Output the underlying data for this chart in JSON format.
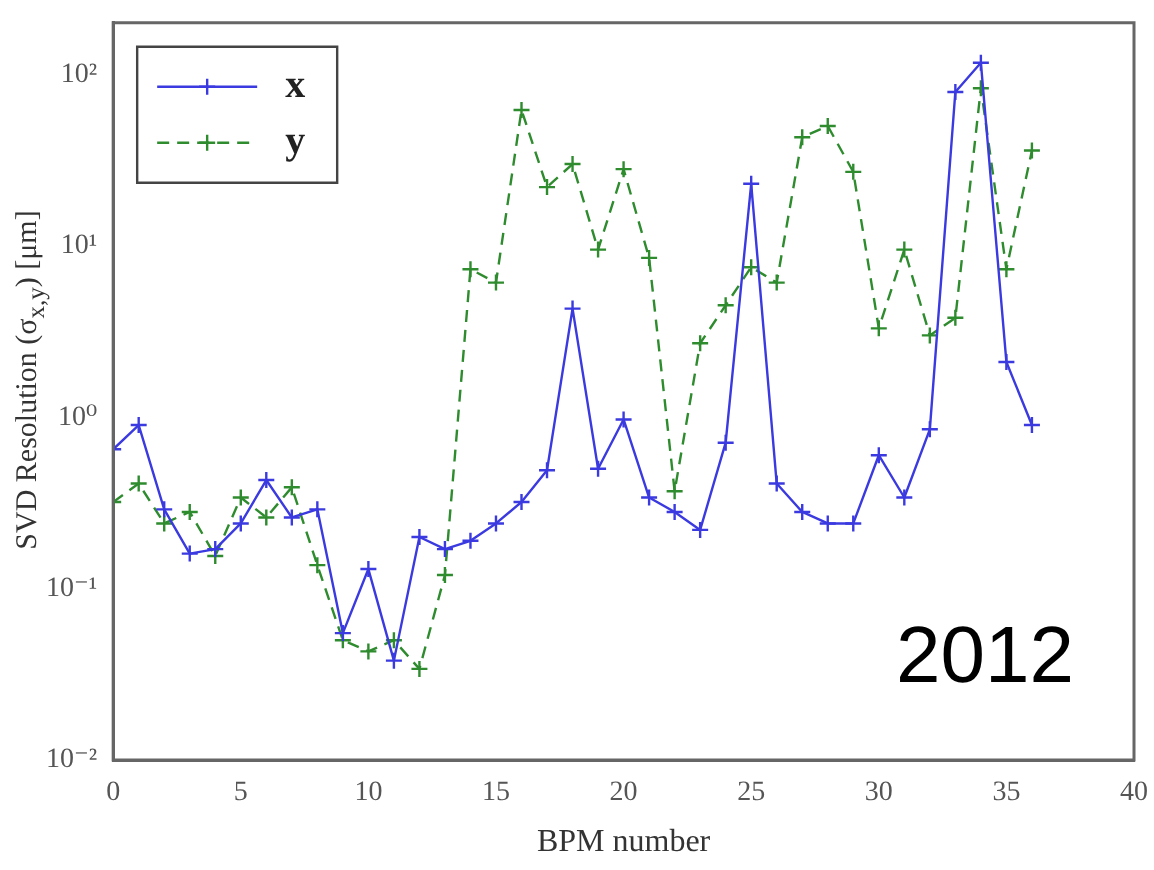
{
  "chart_data": {
    "type": "line",
    "xlabel": "BPM number",
    "ylabel": "SVD Resolution (σ$_{x,y}$) [μm]",
    "annotations": [
      "2012"
    ],
    "x": [
      0,
      1,
      2,
      3,
      4,
      5,
      6,
      7,
      8,
      9,
      10,
      11,
      12,
      13,
      14,
      15,
      16,
      17,
      18,
      19,
      20,
      21,
      22,
      23,
      24,
      25,
      26,
      27,
      28,
      29,
      30,
      31,
      32,
      33,
      34,
      35,
      36
    ],
    "series": [
      {
        "name": "x",
        "color": "#3a3ae0",
        "line_style": "solid",
        "values": [
          0.65,
          0.9,
          0.29,
          0.16,
          0.17,
          0.24,
          0.43,
          0.26,
          0.29,
          0.055,
          0.13,
          0.038,
          0.2,
          0.17,
          0.19,
          0.24,
          0.32,
          0.49,
          4.3,
          0.5,
          0.97,
          0.34,
          0.28,
          0.22,
          0.71,
          23,
          0.41,
          0.28,
          0.24,
          0.24,
          0.6,
          0.34,
          0.85,
          79,
          117,
          2.1,
          0.9
        ]
      },
      {
        "name": "y",
        "color": "#2e8b2e",
        "line_style": "dashed",
        "values": [
          0.32,
          0.41,
          0.24,
          0.28,
          0.155,
          0.34,
          0.26,
          0.39,
          0.137,
          0.05,
          0.043,
          0.05,
          0.034,
          0.12,
          7.3,
          6.1,
          62,
          22,
          30,
          9.5,
          28,
          8.5,
          0.37,
          2.7,
          4.5,
          7.5,
          6.1,
          43,
          50,
          27,
          3.3,
          9.5,
          3.0,
          3.8,
          83,
          7.3,
          36
        ]
      }
    ],
    "xlim": [
      0,
      40
    ],
    "xticks": [
      0,
      5,
      10,
      15,
      20,
      25,
      30,
      35,
      40
    ],
    "ylim": [
      0.01,
      200
    ],
    "yticks": [
      {
        "value": 0.01,
        "label": "10⁻²"
      },
      {
        "value": 0.1,
        "label": "10⁻¹"
      },
      {
        "value": 1,
        "label": "10⁰"
      },
      {
        "value": 10,
        "label": "10¹"
      },
      {
        "value": 100,
        "label": "10²"
      }
    ],
    "log": "y",
    "grid": false,
    "legend": "top left",
    "marker": "cross"
  }
}
